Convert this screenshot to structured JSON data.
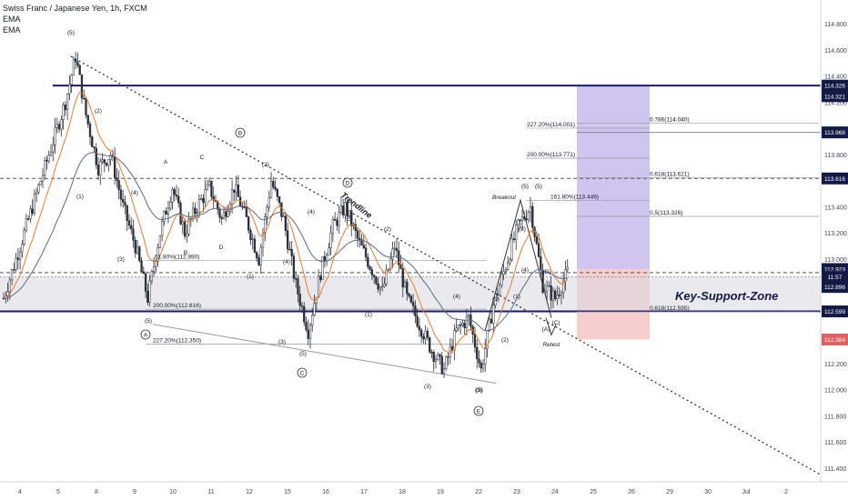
{
  "header": {
    "title": "Swiss Franc / Japanese Yen, 1h, FXCM",
    "ema1": "EMA",
    "ema2": "EMA"
  },
  "colors": {
    "candle": "#2a2e39",
    "ema_fast": "#f07b2b",
    "ema_slow": "#5b6a8a",
    "level_line": "#1a1a6e",
    "target_box": "#b7a6e6",
    "stop_box": "#f3b3b3",
    "support_zone": "#d8d8e0"
  },
  "price_scale": {
    "ticks": [
      "114.800",
      "114.600",
      "114.400",
      "114.200",
      "114.000",
      "113.800",
      "113.600",
      "113.400",
      "113.200",
      "113.000",
      "112.800",
      "112.600",
      "112.400",
      "112.200",
      "112.000",
      "111.800",
      "111.600",
      "111.400"
    ],
    "tick_values": [
      114.8,
      114.6,
      114.4,
      114.2,
      114.0,
      113.8,
      113.6,
      113.4,
      113.2,
      113.0,
      112.8,
      112.6,
      112.4,
      112.2,
      112.0,
      111.8,
      111.6,
      111.4
    ],
    "range": [
      111.3,
      114.88
    ],
    "badges": [
      {
        "label": "114.326",
        "value": 114.326,
        "color": "#131a45"
      },
      {
        "label": "114.321",
        "value": 114.245,
        "color": "#131a45"
      },
      {
        "label": "113.968",
        "value": 113.968,
        "color": "#131a45"
      },
      {
        "label": "113.616",
        "value": 113.616,
        "color": "#131a45"
      },
      {
        "label": "112.923",
        "value": 112.923,
        "color": "#131a45"
      },
      {
        "label": "11:57",
        "value": 112.863,
        "color": "#131a45"
      },
      {
        "label": "112.896",
        "value": 112.786,
        "color": "#131a45"
      },
      {
        "label": "112.599",
        "value": 112.599,
        "color": "#131a45"
      },
      {
        "label": "112.384",
        "value": 112.384,
        "color": "#e06060"
      }
    ]
  },
  "time_axis": {
    "labels": [
      "4",
      "5",
      "8",
      "9",
      "10",
      "11",
      "12",
      "15",
      "16",
      "17",
      "18",
      "19",
      "22",
      "23",
      "24",
      "25",
      "26",
      "29",
      "30",
      "Jul",
      "2"
    ]
  },
  "chart_data": {
    "type": "candlestick",
    "symbol": "CHFJPY",
    "timeframe": "1h",
    "ylim": [
      111.3,
      114.88
    ],
    "anchor_points": [
      [
        0,
        112.7
      ],
      [
        6,
        113.0
      ],
      [
        12,
        113.3
      ],
      [
        18,
        113.6
      ],
      [
        24,
        113.9
      ],
      [
        30,
        114.2
      ],
      [
        35,
        114.55
      ],
      [
        40,
        114.1
      ],
      [
        46,
        113.7
      ],
      [
        52,
        113.8
      ],
      [
        58,
        113.4
      ],
      [
        64,
        113.1
      ],
      [
        70,
        112.7
      ],
      [
        76,
        113.2
      ],
      [
        82,
        113.55
      ],
      [
        88,
        113.2
      ],
      [
        94,
        113.4
      ],
      [
        100,
        113.55
      ],
      [
        106,
        113.3
      ],
      [
        112,
        113.55
      ],
      [
        118,
        113.3
      ],
      [
        124,
        113.0
      ],
      [
        130,
        113.6
      ],
      [
        136,
        113.3
      ],
      [
        142,
        112.8
      ],
      [
        148,
        112.45
      ],
      [
        154,
        112.9
      ],
      [
        160,
        113.25
      ],
      [
        166,
        113.4
      ],
      [
        172,
        113.15
      ],
      [
        178,
        112.95
      ],
      [
        184,
        112.75
      ],
      [
        190,
        113.1
      ],
      [
        196,
        112.7
      ],
      [
        202,
        112.5
      ],
      [
        208,
        112.3
      ],
      [
        214,
        112.15
      ],
      [
        220,
        112.45
      ],
      [
        226,
        112.55
      ],
      [
        232,
        112.15
      ],
      [
        238,
        112.65
      ],
      [
        244,
        112.95
      ],
      [
        250,
        113.25
      ],
      [
        256,
        113.4
      ],
      [
        262,
        112.8
      ],
      [
        268,
        112.7
      ],
      [
        274,
        112.9
      ]
    ],
    "levels": [
      {
        "name": "resistance-114.326",
        "value": 114.326,
        "style": "solid"
      },
      {
        "name": "level-113.968",
        "value": 113.968,
        "style": "solid-thin"
      },
      {
        "name": "level-113.616",
        "value": 113.616,
        "style": "dashed"
      },
      {
        "name": "level-112.896",
        "value": 112.896,
        "style": "dashed"
      },
      {
        "name": "support-112.599",
        "value": 112.599,
        "style": "solid"
      }
    ],
    "fib_labels": [
      {
        "text": "227.20%(114.001)",
        "value": 114.001
      },
      {
        "text": "0.786(114.040)",
        "value": 114.04
      },
      {
        "text": "200.00%(113.771)",
        "value": 113.771
      },
      {
        "text": "0.618(113.621)",
        "value": 113.621
      },
      {
        "text": "161.80%(113.449)",
        "value": 113.449
      },
      {
        "text": "0.5(113.326)",
        "value": 113.326
      },
      {
        "text": "61.80%(112.990)",
        "value": 112.99
      },
      {
        "text": "200.00%(112.616)",
        "value": 112.616
      },
      {
        "text": "0.618(112.595)",
        "value": 112.595
      },
      {
        "text": "227.20%(112.350)",
        "value": 112.35
      }
    ],
    "wave_labels": [
      "(5)",
      "(2)",
      "(1)",
      "(4)",
      "(3)",
      "(5)",
      "A",
      "B",
      "C",
      "D",
      "(1)",
      "(2)",
      "(4)",
      "(5)",
      "(3)",
      "(C)",
      "(4)",
      "(1)",
      "(2)",
      "(3)",
      "(5)",
      "(4)",
      "(1)",
      "(3)",
      "(5)",
      "(2)",
      "(4)",
      "(1)",
      "(5)",
      "(3)",
      "(B)",
      "(A)",
      "(C)",
      "A",
      "B",
      "C",
      "D",
      "E"
    ],
    "annotations": {
      "trendline": "Trendline",
      "breakout": "Breakout",
      "retest": "Retest",
      "zone": "Key-Support-Zone"
    }
  }
}
